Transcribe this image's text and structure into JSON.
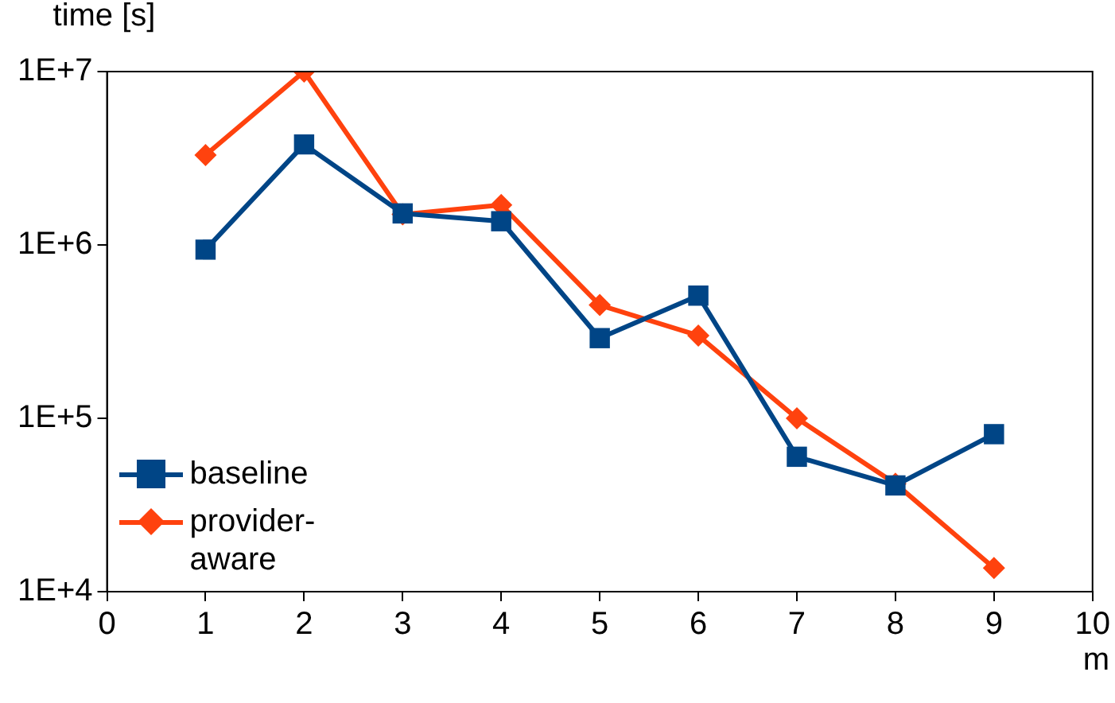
{
  "chart_data": {
    "type": "line",
    "xlabel": "m",
    "ylabel": "time [s]",
    "x": [
      1,
      2,
      3,
      4,
      5,
      6,
      7,
      8,
      9
    ],
    "series": [
      {
        "name": "baseline",
        "color": "#004586",
        "marker": "square",
        "values": [
          940000,
          3800000,
          1520000,
          1370000,
          290000,
          510000,
          60000,
          41000,
          81000
        ]
      },
      {
        "name": "provider-aware",
        "color": "#ff420e",
        "marker": "diamond",
        "values": [
          3300000,
          10000000,
          1500000,
          1700000,
          450000,
          300000,
          100000,
          42000,
          13700
        ]
      }
    ],
    "xlim": [
      0,
      10
    ],
    "xticks": [
      0,
      1,
      2,
      3,
      4,
      5,
      6,
      7,
      8,
      9,
      10
    ],
    "ylim": [
      10000,
      10000000
    ],
    "yticks": [
      {
        "value": 10000,
        "label": "1E+4"
      },
      {
        "value": 100000,
        "label": "1E+5"
      },
      {
        "value": 1000000,
        "label": "1E+6"
      },
      {
        "value": 10000000,
        "label": "1E+7"
      }
    ],
    "log": true,
    "grid": false,
    "legend": "bottom left",
    "line_style": "solid"
  }
}
